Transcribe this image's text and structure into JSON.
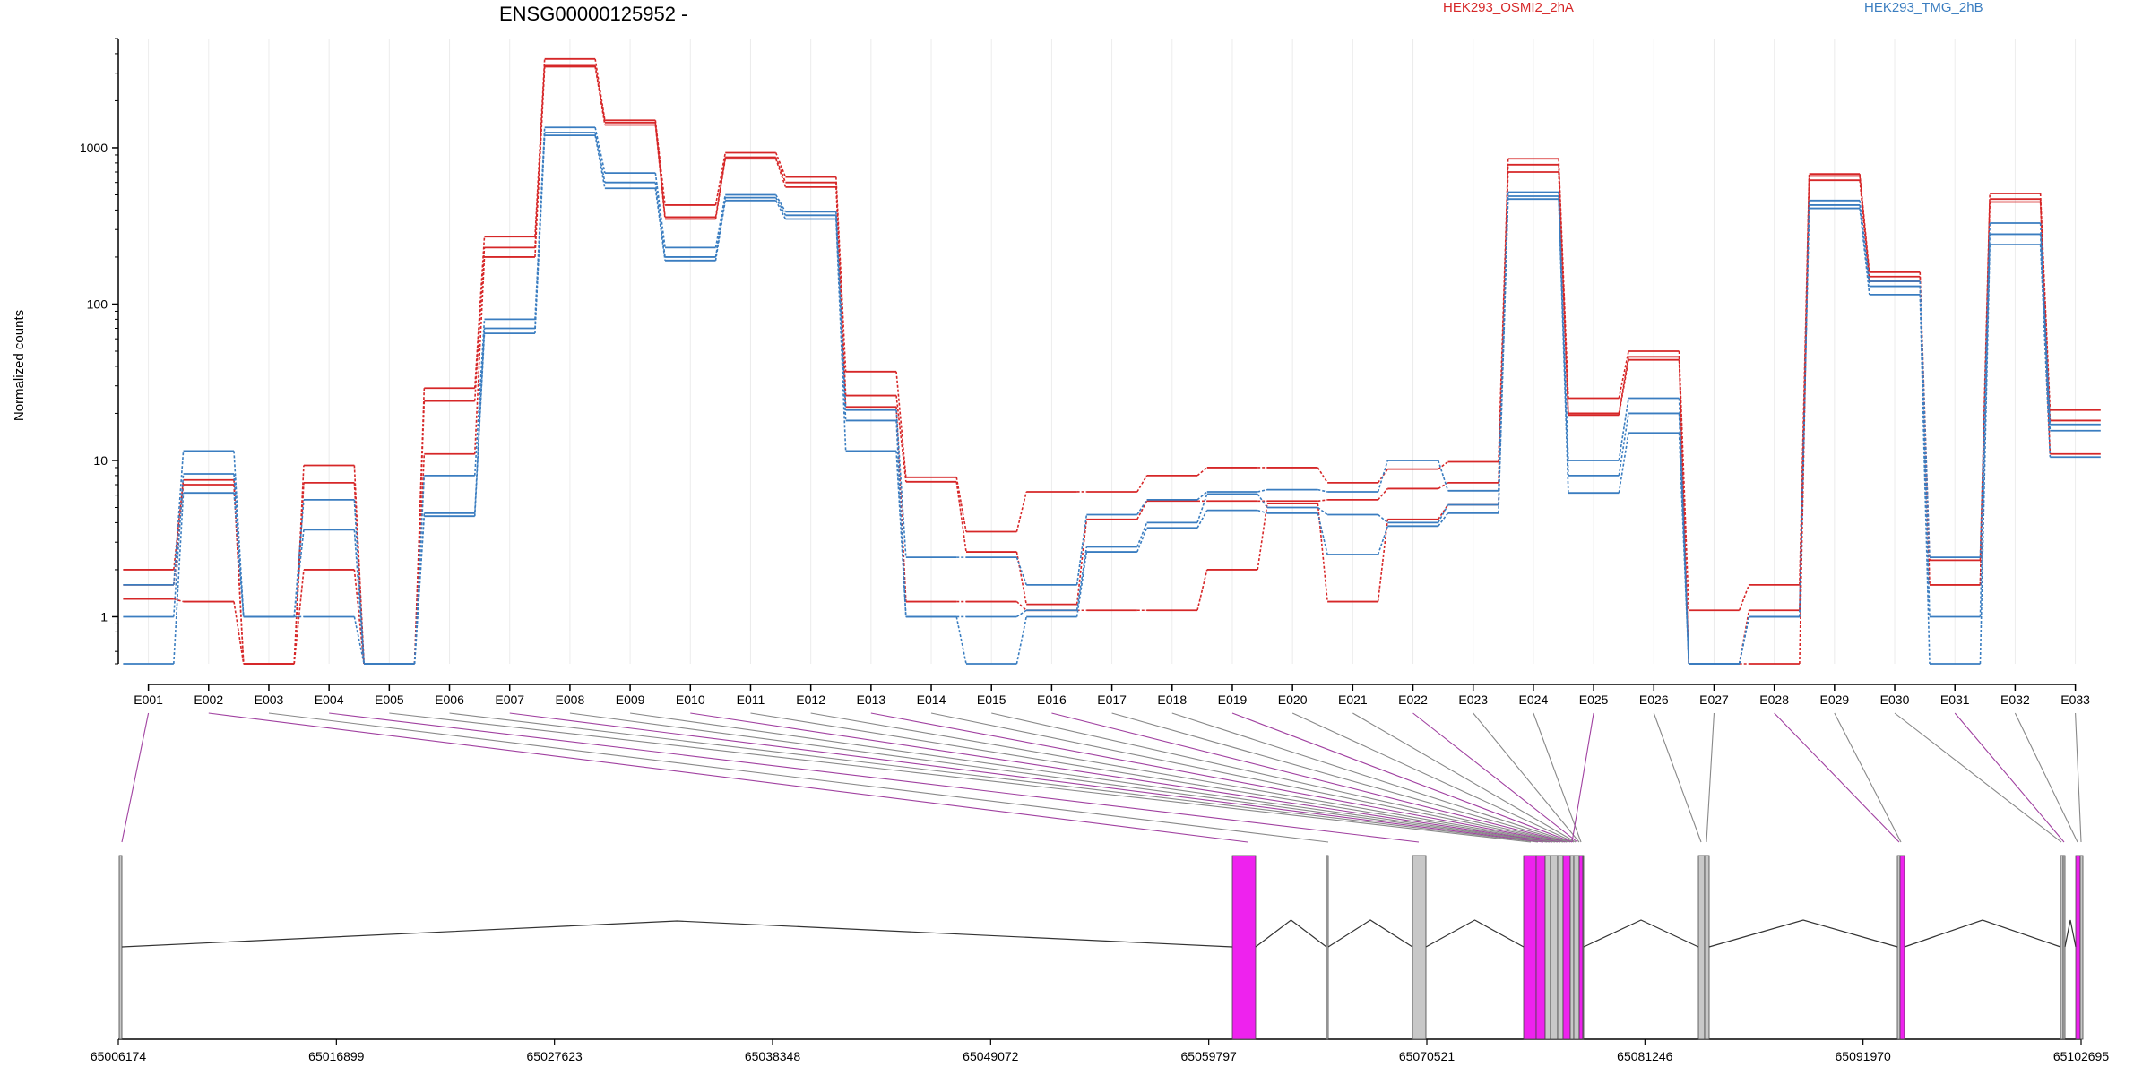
{
  "chart_data": {
    "type": "line",
    "title": "ENSG00000125952 -",
    "ylabel": "Normalized counts",
    "xlabel": "",
    "yscale": "log",
    "ylim": [
      0.5,
      5000
    ],
    "y_ticks": [
      "1",
      "10",
      "100",
      "1000"
    ],
    "categories": [
      "E001",
      "E002",
      "E003",
      "E004",
      "E005",
      "E006",
      "E007",
      "E008",
      "E009",
      "E010",
      "E011",
      "E012",
      "E013",
      "E014",
      "E015",
      "E016",
      "E017",
      "E018",
      "E019",
      "E020",
      "E021",
      "E022",
      "E023",
      "E024",
      "E025",
      "E026",
      "E027",
      "E028",
      "E029",
      "E030",
      "E031",
      "E032",
      "E033"
    ],
    "legend": [
      {
        "label": "HEK293_OSMI2_2hA",
        "color": "#d62728"
      },
      {
        "label": "HEK293_TMG_2hB",
        "color": "#3a7dc0"
      }
    ],
    "series": [
      {
        "group": "HEK293_OSMI2_2hA",
        "color": "#d62728",
        "values": [
          2,
          7.5,
          0.5,
          9.3,
          0.5,
          29,
          270,
          3700,
          1500,
          430,
          930,
          650,
          37,
          7.8,
          3.5,
          6.3,
          6.3,
          8,
          9,
          9,
          7.2,
          8.8,
          9.8,
          850,
          25,
          50,
          1.1,
          1.6,
          680,
          160,
          2.3,
          510,
          21
        ]
      },
      {
        "group": "HEK293_OSMI2_2hA",
        "color": "#d62728",
        "values": [
          1.6,
          7,
          0.5,
          7.2,
          0.5,
          24,
          230,
          3350,
          1450,
          360,
          870,
          600,
          26,
          7.3,
          2.6,
          1.2,
          4.2,
          5.5,
          5.5,
          5.5,
          5.6,
          6.6,
          7.2,
          780,
          20,
          46,
          0.5,
          1.1,
          660,
          150,
          1.6,
          470,
          18
        ]
      },
      {
        "group": "HEK293_OSMI2_2hA",
        "color": "#d62728",
        "values": [
          1.3,
          1.25,
          0.5,
          2,
          0.5,
          11,
          200,
          3300,
          1400,
          350,
          850,
          560,
          22,
          1.25,
          1.25,
          1.1,
          1.1,
          1.1,
          2,
          5.3,
          1.25,
          4.2,
          5.2,
          700,
          19.5,
          44,
          0.5,
          0.5,
          620,
          140,
          1.6,
          450,
          11
        ]
      },
      {
        "group": "HEK293_TMG_2hB",
        "color": "#3a7dc0",
        "values": [
          1.6,
          11.5,
          1,
          5.6,
          0.5,
          8,
          80,
          1350,
          690,
          230,
          500,
          390,
          21,
          2.4,
          2.4,
          1.6,
          4.5,
          5.6,
          6.3,
          6.5,
          6.3,
          10,
          6.4,
          520,
          10,
          25,
          0.5,
          1,
          460,
          140,
          2.4,
          330,
          17
        ]
      },
      {
        "group": "HEK293_TMG_2hB",
        "color": "#3a7dc0",
        "values": [
          1,
          8.2,
          1,
          3.6,
          0.5,
          4.6,
          70,
          1250,
          600,
          200,
          480,
          370,
          18,
          1,
          1,
          1.1,
          2.8,
          4,
          6.1,
          5,
          4.5,
          4,
          5.2,
          490,
          8,
          20,
          0.5,
          1,
          430,
          130,
          1,
          280,
          15.5
        ]
      },
      {
        "group": "HEK293_TMG_2hB",
        "color": "#3a7dc0",
        "values": [
          0.5,
          6.2,
          1,
          1,
          0.5,
          4.4,
          65,
          1200,
          550,
          190,
          460,
          350,
          11.5,
          1,
          0.5,
          1,
          2.6,
          3.7,
          4.8,
          4.6,
          2.5,
          3.8,
          4.6,
          470,
          6.2,
          15,
          0.5,
          1,
          410,
          115,
          0.5,
          240,
          10.5
        ]
      }
    ],
    "gene_track": {
      "coordinate_ticks": [
        "65006174",
        "65016899",
        "65027623",
        "65038348",
        "65049072",
        "65059797",
        "65070521",
        "65081246",
        "65091970",
        "65102695"
      ],
      "exon_colors": {
        "highlight": "#ee22ee",
        "normal": "#c8c8c8"
      }
    }
  }
}
